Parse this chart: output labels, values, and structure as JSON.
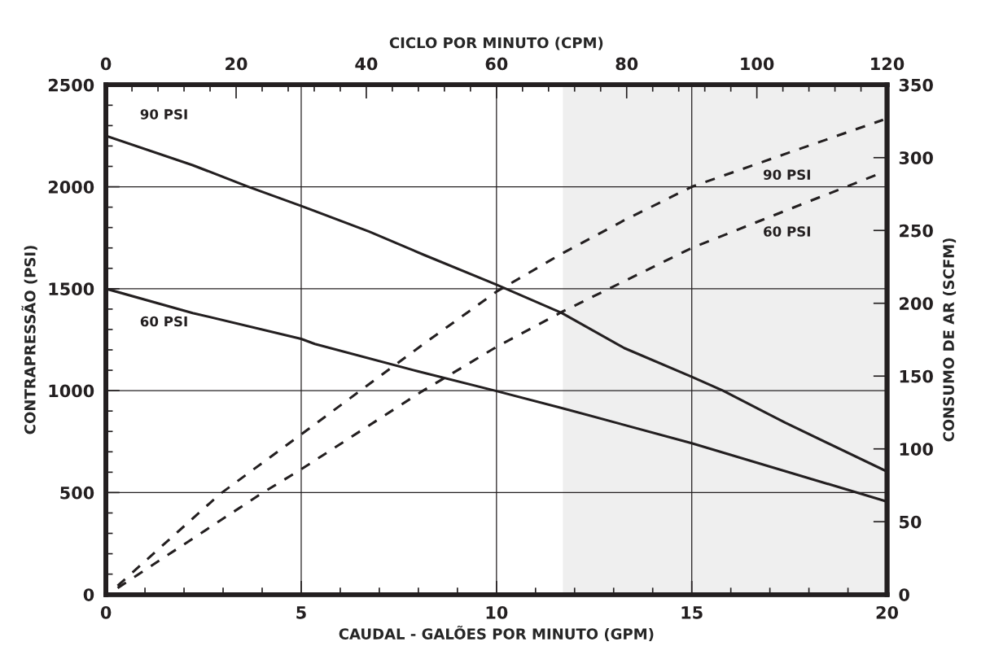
{
  "chart_data": {
    "type": "line",
    "title": null,
    "xlabel": "CAUDAL - GALÕES POR MINUTO (GPM)",
    "x2label": "CICLO POR MINUTO (CPM)",
    "ylabel": "CONTRAPRESSÃO (PSI)",
    "y2label": "CONSUMO DE AR (SCFM)",
    "xlim": [
      0,
      20
    ],
    "x2lim": [
      0,
      120
    ],
    "ylim": [
      0,
      2500
    ],
    "y2lim": [
      0,
      350
    ],
    "xticks": [
      0,
      {
        "value": 1,
        "label": null
      },
      {
        "value": 2,
        "label": null
      },
      {
        "value": 3,
        "label": null
      },
      {
        "value": 4,
        "label": null
      },
      5,
      {
        "value": 6,
        "label": null
      },
      {
        "value": 7,
        "label": null
      },
      {
        "value": 8,
        "label": null
      },
      {
        "value": 9,
        "label": null
      },
      10,
      {
        "value": 11,
        "label": null
      },
      {
        "value": 12,
        "label": null
      },
      {
        "value": 13,
        "label": null
      },
      {
        "value": 14,
        "label": null
      },
      15,
      {
        "value": 16,
        "label": null
      },
      {
        "value": 17,
        "label": null
      },
      {
        "value": 18,
        "label": null
      },
      {
        "value": 19,
        "label": null
      },
      20
    ],
    "x2ticks": [
      0,
      {
        "value": 4,
        "label": null
      },
      {
        "value": 8,
        "label": null
      },
      {
        "value": 12,
        "label": null
      },
      {
        "value": 16,
        "label": null
      },
      20,
      {
        "value": 24,
        "label": null
      },
      {
        "value": 28,
        "label": null
      },
      {
        "value": 32,
        "label": null
      },
      {
        "value": 36,
        "label": null
      },
      40,
      {
        "value": 44,
        "label": null
      },
      {
        "value": 48,
        "label": null
      },
      {
        "value": 52,
        "label": null
      },
      {
        "value": 56,
        "label": null
      },
      60,
      {
        "value": 64,
        "label": null
      },
      {
        "value": 68,
        "label": null
      },
      {
        "value": 72,
        "label": null
      },
      {
        "value": 76,
        "label": null
      },
      80,
      {
        "value": 84,
        "label": null
      },
      {
        "value": 88,
        "label": null
      },
      {
        "value": 92,
        "label": null
      },
      {
        "value": 96,
        "label": null
      },
      100,
      {
        "value": 104,
        "label": null
      },
      {
        "value": 108,
        "label": null
      },
      {
        "value": 112,
        "label": null
      },
      {
        "value": 116,
        "label": null
      },
      120
    ],
    "yticks": [
      0,
      {
        "value": 100,
        "label": null
      },
      {
        "value": 200,
        "label": null
      },
      {
        "value": 300,
        "label": null
      },
      {
        "value": 400,
        "label": null
      },
      500,
      {
        "value": 600,
        "label": null
      },
      {
        "value": 700,
        "label": null
      },
      {
        "value": 800,
        "label": null
      },
      {
        "value": 900,
        "label": null
      },
      1000,
      {
        "value": 1100,
        "label": null
      },
      {
        "value": 1200,
        "label": null
      },
      {
        "value": 1300,
        "label": null
      },
      {
        "value": 1400,
        "label": null
      },
      1500,
      {
        "value": 1600,
        "label": null
      },
      {
        "value": 1700,
        "label": null
      },
      {
        "value": 1800,
        "label": null
      },
      {
        "value": 1900,
        "label": null
      },
      2000,
      {
        "value": 2100,
        "label": null
      },
      {
        "value": 2200,
        "label": null
      },
      {
        "value": 2300,
        "label": null
      },
      {
        "value": 2400,
        "label": null
      },
      2500
    ],
    "y2ticks": [
      0,
      50,
      100,
      150,
      200,
      250,
      300,
      350
    ],
    "grid": true,
    "legend": false,
    "marker": "none",
    "bands": [
      {
        "axis": "x",
        "from": 11.7,
        "to": 20,
        "color": "#efefef"
      }
    ],
    "series": [
      {
        "name": "90 PSI",
        "color": "#231f20",
        "line_style": "solid",
        "x": [
          0,
          2.22,
          3.65,
          5,
          6.74,
          8.13,
          10,
          11.67,
          13.27,
          15,
          15.8,
          17.4,
          20
        ],
        "values": [
          2250,
          2106,
          2000,
          1906,
          1780,
          1667,
          1520,
          1381,
          1209,
          1068,
          1000,
          842,
          603
        ]
      },
      {
        "name": "60 PSI",
        "color": "#231f20",
        "line_style": "solid",
        "x": [
          0,
          2.22,
          5,
          5.35,
          7.98,
          10,
          11.67,
          15,
          20
        ],
        "values": [
          1500,
          1381,
          1254,
          1229,
          1095,
          998,
          915,
          742,
          456
        ]
      },
      {
        "name": "90 PSI",
        "color": "#231f20",
        "line_style": "dashed",
        "axis": "y2",
        "x": [
          0.3,
          2.92,
          5,
          8.13,
          10,
          11.67,
          13.27,
          15,
          17.44,
          19.9
        ],
        "values": [
          6,
          69,
          110,
          172,
          208,
          234,
          257,
          280,
          303,
          326
        ]
      },
      {
        "name": "60 PSI",
        "color": "#231f20",
        "line_style": "dashed",
        "axis": "y2",
        "x": [
          0.3,
          3.96,
          5,
          8.06,
          10,
          11.67,
          15,
          17.44,
          19.9
        ],
        "values": [
          4.5,
          69,
          86,
          139,
          170,
          194,
          238,
          264,
          290
        ]
      }
    ]
  }
}
